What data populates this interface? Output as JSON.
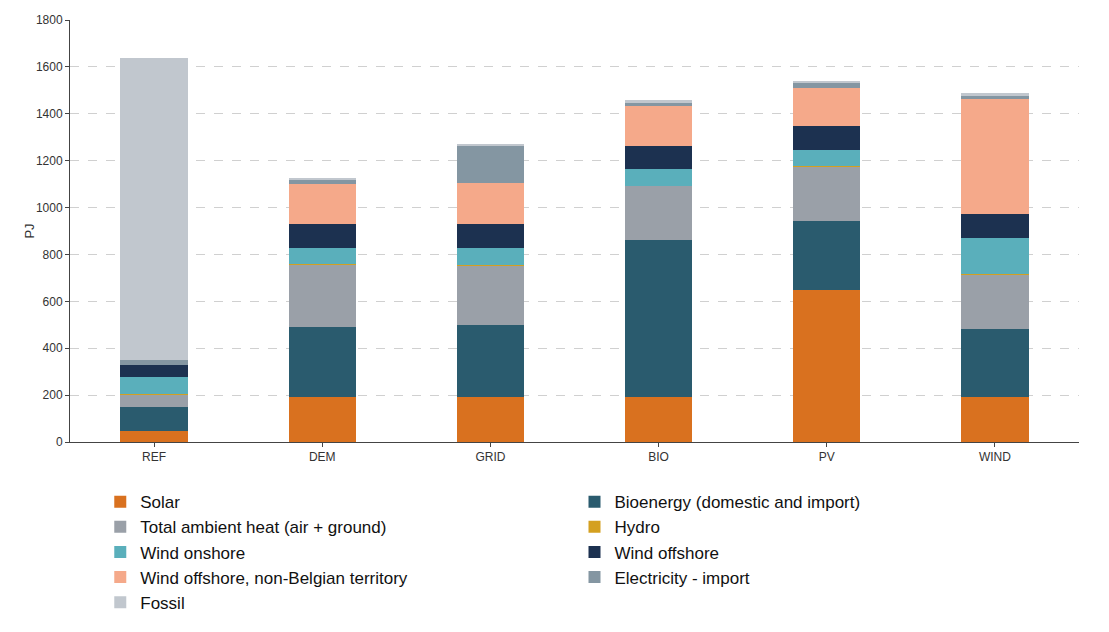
{
  "chart_data": {
    "type": "bar",
    "stacked": true,
    "y_label": "PJ",
    "categories": [
      "REF",
      "DEM",
      "GRID",
      "BIO",
      "PV",
      "WIND"
    ],
    "ylim": [
      0,
      1800
    ],
    "yticks": [
      0,
      200,
      400,
      600,
      800,
      1000,
      1200,
      1400,
      1600,
      1800
    ],
    "grid": true,
    "legend": "bottom",
    "series": [
      {
        "name": "Solar",
        "color": "#d9711f",
        "values": [
          48,
          192,
          192,
          192,
          650,
          192
        ]
      },
      {
        "name": "Bioenergy (domestic and import)",
        "color": "#2a5b6e",
        "values": [
          100,
          300,
          308,
          670,
          292,
          288
        ]
      },
      {
        "name": "Total ambient heat (air + ground)",
        "color": "#9aa0a8",
        "values": [
          55,
          265,
          252,
          230,
          235,
          233
        ]
      },
      {
        "name": "Hydro",
        "color": "#d4a020",
        "values": [
          2,
          2,
          2,
          2,
          2,
          2
        ]
      },
      {
        "name": "Wind onshore",
        "color": "#5aafbb",
        "values": [
          73,
          70,
          74,
          70,
          68,
          157
        ]
      },
      {
        "name": "Wind offshore",
        "color": "#1c3150",
        "values": [
          50,
          103,
          100,
          100,
          100,
          100
        ]
      },
      {
        "name": "Wind offshore, non-Belgian territory",
        "color": "#f5a98a",
        "values": [
          0,
          170,
          178,
          168,
          165,
          490
        ]
      },
      {
        "name": "Electricity - import",
        "color": "#8496a2",
        "values": [
          20,
          18,
          160,
          18,
          20,
          18
        ]
      },
      {
        "name": "Fossil",
        "color": "#c1c7ce",
        "values": [
          1288,
          6,
          6,
          8,
          8,
          8
        ]
      }
    ]
  }
}
